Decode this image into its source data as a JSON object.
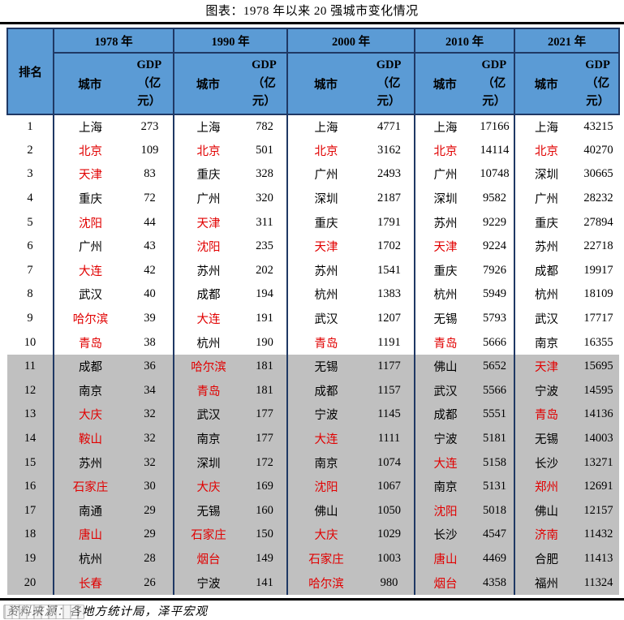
{
  "title": "图表：1978 年以来 20 强城市变化情况",
  "footer": {
    "source": "资料来源：各地方统计局，泽平宏观"
  },
  "colors": {
    "header_blue": "#5B9BD5",
    "border_navy": "#1F3864",
    "shaded_row_gray": "#C0C0C0",
    "highlight_red": "#E10000"
  },
  "table": {
    "rank_header": "排名",
    "city_header": "城市",
    "gdp_header": "GDP\n（亿\n元）",
    "years": [
      "1978 年",
      "1990 年",
      "2000 年",
      "2010 年",
      "2021 年"
    ]
  },
  "chart_data": {
    "type": "table",
    "title": "图表：1978 年以来 20 强城市变化情况",
    "unit": "亿元",
    "years": [
      "1978",
      "1990",
      "2000",
      "2010",
      "2021"
    ],
    "red_means": "city-name-rendered-in-red",
    "rows": [
      {
        "rank": 1,
        "entries": [
          {
            "city": "上海",
            "gdp": 273,
            "red": false
          },
          {
            "city": "上海",
            "gdp": 782,
            "red": false
          },
          {
            "city": "上海",
            "gdp": 4771,
            "red": false
          },
          {
            "city": "上海",
            "gdp": 17166,
            "red": false
          },
          {
            "city": "上海",
            "gdp": 43215,
            "red": false
          }
        ]
      },
      {
        "rank": 2,
        "entries": [
          {
            "city": "北京",
            "gdp": 109,
            "red": true
          },
          {
            "city": "北京",
            "gdp": 501,
            "red": true
          },
          {
            "city": "北京",
            "gdp": 3162,
            "red": true
          },
          {
            "city": "北京",
            "gdp": 14114,
            "red": true
          },
          {
            "city": "北京",
            "gdp": 40270,
            "red": true
          }
        ]
      },
      {
        "rank": 3,
        "entries": [
          {
            "city": "天津",
            "gdp": 83,
            "red": true
          },
          {
            "city": "重庆",
            "gdp": 328,
            "red": false
          },
          {
            "city": "广州",
            "gdp": 2493,
            "red": false
          },
          {
            "city": "广州",
            "gdp": 10748,
            "red": false
          },
          {
            "city": "深圳",
            "gdp": 30665,
            "red": false
          }
        ]
      },
      {
        "rank": 4,
        "entries": [
          {
            "city": "重庆",
            "gdp": 72,
            "red": false
          },
          {
            "city": "广州",
            "gdp": 320,
            "red": false
          },
          {
            "city": "深圳",
            "gdp": 2187,
            "red": false
          },
          {
            "city": "深圳",
            "gdp": 9582,
            "red": false
          },
          {
            "city": "广州",
            "gdp": 28232,
            "red": false
          }
        ]
      },
      {
        "rank": 5,
        "entries": [
          {
            "city": "沈阳",
            "gdp": 44,
            "red": true
          },
          {
            "city": "天津",
            "gdp": 311,
            "red": true
          },
          {
            "city": "重庆",
            "gdp": 1791,
            "red": false
          },
          {
            "city": "苏州",
            "gdp": 9229,
            "red": false
          },
          {
            "city": "重庆",
            "gdp": 27894,
            "red": false
          }
        ]
      },
      {
        "rank": 6,
        "entries": [
          {
            "city": "广州",
            "gdp": 43,
            "red": false
          },
          {
            "city": "沈阳",
            "gdp": 235,
            "red": true
          },
          {
            "city": "天津",
            "gdp": 1702,
            "red": true
          },
          {
            "city": "天津",
            "gdp": 9224,
            "red": true
          },
          {
            "city": "苏州",
            "gdp": 22718,
            "red": false
          }
        ]
      },
      {
        "rank": 7,
        "entries": [
          {
            "city": "大连",
            "gdp": 42,
            "red": true
          },
          {
            "city": "苏州",
            "gdp": 202,
            "red": false
          },
          {
            "city": "苏州",
            "gdp": 1541,
            "red": false
          },
          {
            "city": "重庆",
            "gdp": 7926,
            "red": false
          },
          {
            "city": "成都",
            "gdp": 19917,
            "red": false
          }
        ]
      },
      {
        "rank": 8,
        "entries": [
          {
            "city": "武汉",
            "gdp": 40,
            "red": false
          },
          {
            "city": "成都",
            "gdp": 194,
            "red": false
          },
          {
            "city": "杭州",
            "gdp": 1383,
            "red": false
          },
          {
            "city": "杭州",
            "gdp": 5949,
            "red": false
          },
          {
            "city": "杭州",
            "gdp": 18109,
            "red": false
          }
        ]
      },
      {
        "rank": 9,
        "entries": [
          {
            "city": "哈尔滨",
            "gdp": 39,
            "red": true
          },
          {
            "city": "大连",
            "gdp": 191,
            "red": true
          },
          {
            "city": "武汉",
            "gdp": 1207,
            "red": false
          },
          {
            "city": "无锡",
            "gdp": 5793,
            "red": false
          },
          {
            "city": "武汉",
            "gdp": 17717,
            "red": false
          }
        ]
      },
      {
        "rank": 10,
        "entries": [
          {
            "city": "青岛",
            "gdp": 38,
            "red": true
          },
          {
            "city": "杭州",
            "gdp": 190,
            "red": false
          },
          {
            "city": "青岛",
            "gdp": 1191,
            "red": true
          },
          {
            "city": "青岛",
            "gdp": 5666,
            "red": true
          },
          {
            "city": "南京",
            "gdp": 16355,
            "red": false
          }
        ]
      },
      {
        "rank": 11,
        "entries": [
          {
            "city": "成都",
            "gdp": 36,
            "red": false
          },
          {
            "city": "哈尔滨",
            "gdp": 181,
            "red": true
          },
          {
            "city": "无锡",
            "gdp": 1177,
            "red": false
          },
          {
            "city": "佛山",
            "gdp": 5652,
            "red": false
          },
          {
            "city": "天津",
            "gdp": 15695,
            "red": true
          }
        ]
      },
      {
        "rank": 12,
        "entries": [
          {
            "city": "南京",
            "gdp": 34,
            "red": false
          },
          {
            "city": "青岛",
            "gdp": 181,
            "red": true
          },
          {
            "city": "成都",
            "gdp": 1157,
            "red": false
          },
          {
            "city": "武汉",
            "gdp": 5566,
            "red": false
          },
          {
            "city": "宁波",
            "gdp": 14595,
            "red": false
          }
        ]
      },
      {
        "rank": 13,
        "entries": [
          {
            "city": "大庆",
            "gdp": 32,
            "red": true
          },
          {
            "city": "武汉",
            "gdp": 177,
            "red": false
          },
          {
            "city": "宁波",
            "gdp": 1145,
            "red": false
          },
          {
            "city": "成都",
            "gdp": 5551,
            "red": false
          },
          {
            "city": "青岛",
            "gdp": 14136,
            "red": true
          }
        ]
      },
      {
        "rank": 14,
        "entries": [
          {
            "city": "鞍山",
            "gdp": 32,
            "red": true
          },
          {
            "city": "南京",
            "gdp": 177,
            "red": false
          },
          {
            "city": "大连",
            "gdp": 1111,
            "red": true
          },
          {
            "city": "宁波",
            "gdp": 5181,
            "red": false
          },
          {
            "city": "无锡",
            "gdp": 14003,
            "red": false
          }
        ]
      },
      {
        "rank": 15,
        "entries": [
          {
            "city": "苏州",
            "gdp": 32,
            "red": false
          },
          {
            "city": "深圳",
            "gdp": 172,
            "red": false
          },
          {
            "city": "南京",
            "gdp": 1074,
            "red": false
          },
          {
            "city": "大连",
            "gdp": 5158,
            "red": true
          },
          {
            "city": "长沙",
            "gdp": 13271,
            "red": false
          }
        ]
      },
      {
        "rank": 16,
        "entries": [
          {
            "city": "石家庄",
            "gdp": 30,
            "red": true
          },
          {
            "city": "大庆",
            "gdp": 169,
            "red": true
          },
          {
            "city": "沈阳",
            "gdp": 1067,
            "red": true
          },
          {
            "city": "南京",
            "gdp": 5131,
            "red": false
          },
          {
            "city": "郑州",
            "gdp": 12691,
            "red": true
          }
        ]
      },
      {
        "rank": 17,
        "entries": [
          {
            "city": "南通",
            "gdp": 29,
            "red": false
          },
          {
            "city": "无锡",
            "gdp": 160,
            "red": false
          },
          {
            "city": "佛山",
            "gdp": 1050,
            "red": false
          },
          {
            "city": "沈阳",
            "gdp": 5018,
            "red": true
          },
          {
            "city": "佛山",
            "gdp": 12157,
            "red": false
          }
        ]
      },
      {
        "rank": 18,
        "entries": [
          {
            "city": "唐山",
            "gdp": 29,
            "red": true
          },
          {
            "city": "石家庄",
            "gdp": 150,
            "red": true
          },
          {
            "city": "大庆",
            "gdp": 1029,
            "red": true
          },
          {
            "city": "长沙",
            "gdp": 4547,
            "red": false
          },
          {
            "city": "济南",
            "gdp": 11432,
            "red": true
          }
        ]
      },
      {
        "rank": 19,
        "entries": [
          {
            "city": "杭州",
            "gdp": 28,
            "red": false
          },
          {
            "city": "烟台",
            "gdp": 149,
            "red": true
          },
          {
            "city": "石家庄",
            "gdp": 1003,
            "red": true
          },
          {
            "city": "唐山",
            "gdp": 4469,
            "red": true
          },
          {
            "city": "合肥",
            "gdp": 11413,
            "red": false
          }
        ]
      },
      {
        "rank": 20,
        "entries": [
          {
            "city": "长春",
            "gdp": 26,
            "red": true
          },
          {
            "city": "宁波",
            "gdp": 141,
            "red": false
          },
          {
            "city": "哈尔滨",
            "gdp": 980,
            "red": true
          },
          {
            "city": "烟台",
            "gdp": 4358,
            "red": true
          },
          {
            "city": "福州",
            "gdp": 11324,
            "red": false
          }
        ]
      }
    ]
  }
}
